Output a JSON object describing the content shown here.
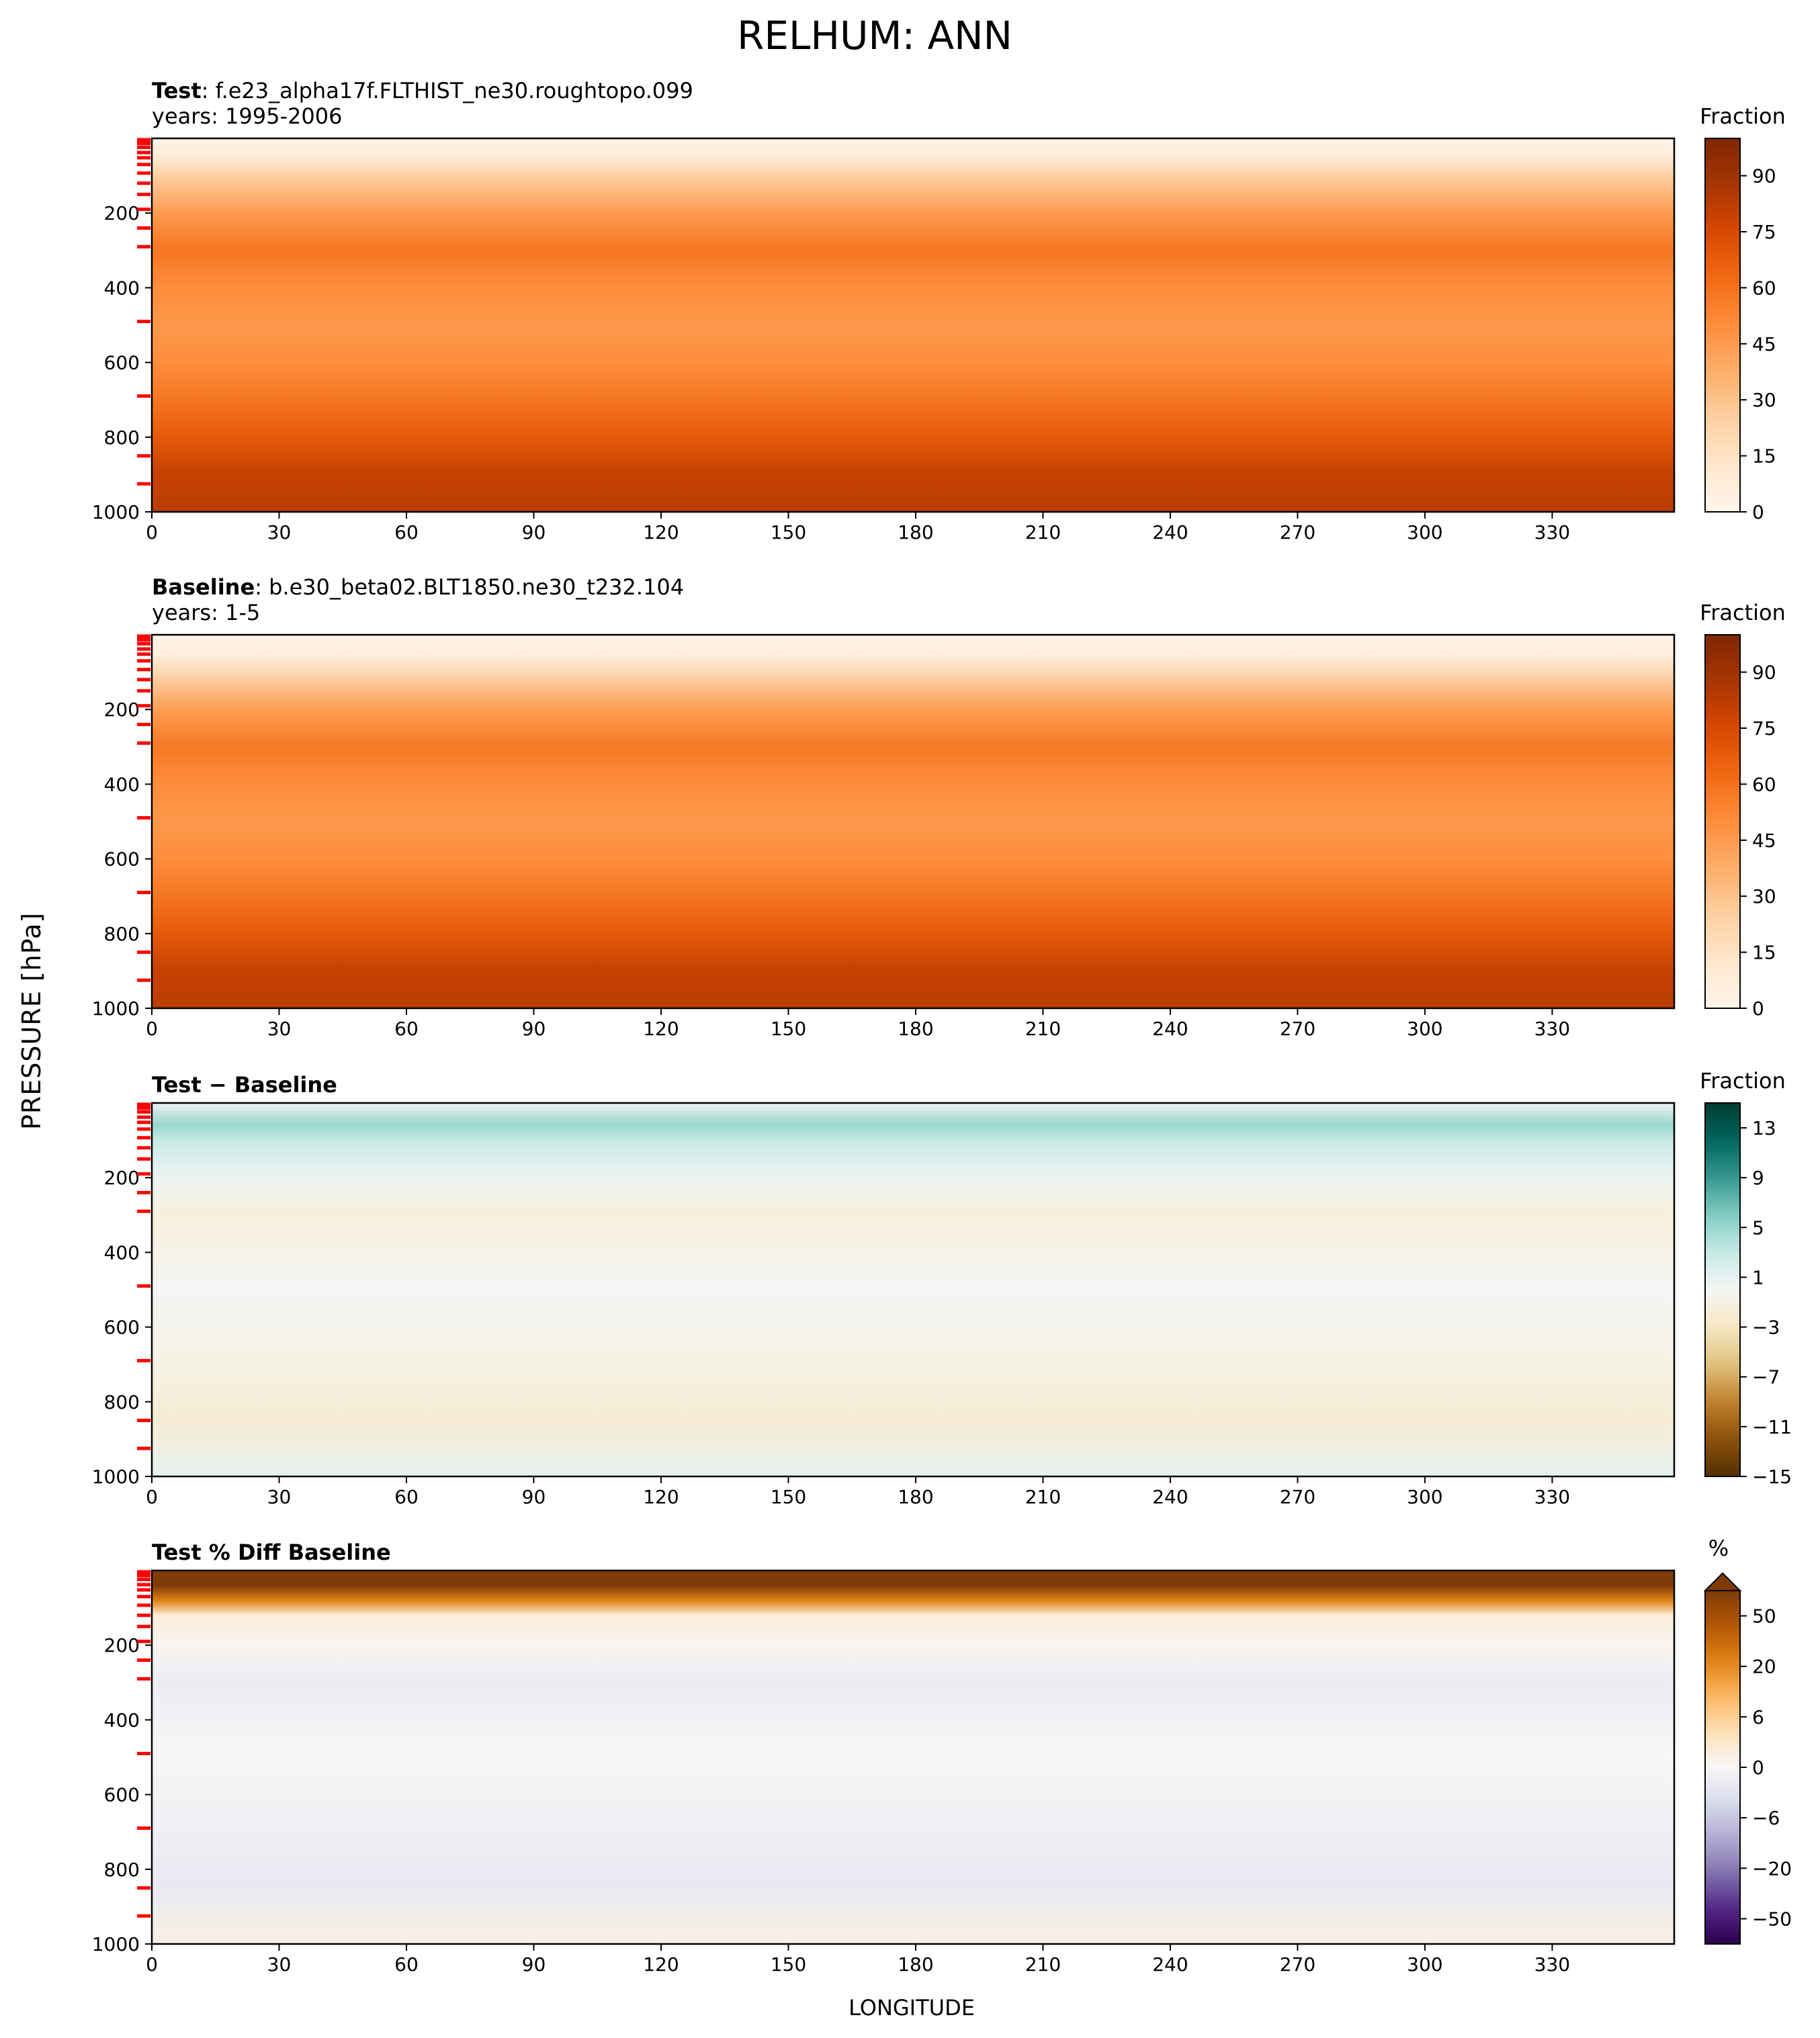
{
  "title": "RELHUM: ANN",
  "ylabel": "PRESSURE [hPa]",
  "xlabel": "LONGITUDE",
  "xticks": [
    "0",
    "30",
    "60",
    "90",
    "120",
    "150",
    "180",
    "210",
    "240",
    "270",
    "300",
    "330"
  ],
  "yticks": [
    "200",
    "400",
    "600",
    "800",
    "1000"
  ],
  "colors": {
    "orange_ramp": [
      "#fff5eb",
      "#fee6ce",
      "#fdd0a2",
      "#fdae6b",
      "#fd8d3c",
      "#f16913",
      "#d94801",
      "#a63603",
      "#7f2704"
    ],
    "brbg_ramp": [
      "#543005",
      "#8c510a",
      "#bf812d",
      "#dfc27d",
      "#f6e8c3",
      "#f5f5f5",
      "#c7eae5",
      "#80cdc1",
      "#35978f",
      "#01665e",
      "#003c30"
    ],
    "puor_ramp": [
      "#2d004b",
      "#542788",
      "#8073ac",
      "#b2abd2",
      "#d8daeb",
      "#f7f7f7",
      "#fee0b6",
      "#fdb863",
      "#e08214",
      "#b35806",
      "#7f3b08"
    ],
    "level_marker": "#ff0000"
  },
  "chart_data": [
    {
      "type": "heatmap",
      "panel": "test",
      "title_bold": "Test",
      "title_text": ": f.e23_alpha17f.FLTHIST_ne30.roughtopo.099",
      "subtitle": "years: 1995-2006",
      "x_range": [
        0,
        358.75
      ],
      "y_range": [
        1000,
        0
      ],
      "colorbar_label": "Fraction",
      "colorbar_ticks": [
        "0",
        "15",
        "30",
        "45",
        "60",
        "75",
        "90"
      ],
      "colorbar_range": [
        0,
        100
      ],
      "grid": false,
      "profile": [
        {
          "p": 0,
          "value": 2
        },
        {
          "p": 50,
          "value": 8
        },
        {
          "p": 100,
          "value": 25
        },
        {
          "p": 200,
          "value": 45
        },
        {
          "p": 300,
          "value": 58
        },
        {
          "p": 400,
          "value": 50
        },
        {
          "p": 500,
          "value": 46
        },
        {
          "p": 600,
          "value": 50
        },
        {
          "p": 700,
          "value": 58
        },
        {
          "p": 800,
          "value": 68
        },
        {
          "p": 900,
          "value": 80
        },
        {
          "p": 1000,
          "value": 82
        }
      ]
    },
    {
      "type": "heatmap",
      "panel": "baseline",
      "title_bold": "Baseline",
      "title_text": ": b.e30_beta02.BLT1850.ne30_t232.104",
      "subtitle": "years: 1-5",
      "x_range": [
        0,
        358.75
      ],
      "y_range": [
        1000,
        0
      ],
      "colorbar_label": "Fraction",
      "colorbar_ticks": [
        "0",
        "15",
        "30",
        "45",
        "60",
        "75",
        "90"
      ],
      "colorbar_range": [
        0,
        100
      ],
      "grid": false,
      "profile": [
        {
          "p": 0,
          "value": 2
        },
        {
          "p": 50,
          "value": 5
        },
        {
          "p": 100,
          "value": 20
        },
        {
          "p": 200,
          "value": 44
        },
        {
          "p": 300,
          "value": 57
        },
        {
          "p": 400,
          "value": 50
        },
        {
          "p": 500,
          "value": 46
        },
        {
          "p": 600,
          "value": 50
        },
        {
          "p": 700,
          "value": 58
        },
        {
          "p": 800,
          "value": 68
        },
        {
          "p": 900,
          "value": 80
        },
        {
          "p": 1000,
          "value": 82
        }
      ]
    },
    {
      "type": "heatmap",
      "panel": "difference",
      "title_bold": "Test − Baseline",
      "title_text": "",
      "subtitle": "",
      "x_range": [
        0,
        358.75
      ],
      "y_range": [
        1000,
        0
      ],
      "colorbar_label": "Fraction",
      "colorbar_ticks": [
        "13",
        "9",
        "5",
        "1",
        "−3",
        "−7",
        "−11",
        "−15"
      ],
      "colorbar_range": [
        -15,
        15
      ],
      "grid": false,
      "profile": [
        {
          "p": 0,
          "value": 0.5
        },
        {
          "p": 60,
          "value": 5
        },
        {
          "p": 100,
          "value": 3
        },
        {
          "p": 200,
          "value": 0.5
        },
        {
          "p": 300,
          "value": -1.5
        },
        {
          "p": 500,
          "value": 0
        },
        {
          "p": 700,
          "value": -1
        },
        {
          "p": 850,
          "value": -2
        },
        {
          "p": 1000,
          "value": 1
        }
      ]
    },
    {
      "type": "heatmap",
      "panel": "percent_difference",
      "title_bold": "Test % Diff Baseline",
      "title_text": "",
      "subtitle": "",
      "x_range": [
        0,
        358.75
      ],
      "y_range": [
        1000,
        0
      ],
      "colorbar_label": "%",
      "colorbar_ticks": [
        "50",
        "20",
        "6",
        "0",
        "−6",
        "−20",
        "−50"
      ],
      "colorbar_range": [
        -50,
        50
      ],
      "grid": false,
      "profile": [
        {
          "p": 0,
          "value": 70
        },
        {
          "p": 40,
          "value": 55
        },
        {
          "p": 80,
          "value": 30
        },
        {
          "p": 120,
          "value": 5
        },
        {
          "p": 200,
          "value": 1
        },
        {
          "p": 300,
          "value": -4
        },
        {
          "p": 500,
          "value": 0
        },
        {
          "p": 700,
          "value": -3
        },
        {
          "p": 850,
          "value": -5
        },
        {
          "p": 1000,
          "value": 3
        }
      ]
    }
  ],
  "model_levels_hPa": [
    3.6,
    7.6,
    14,
    24,
    38,
    52,
    70,
    93,
    120,
    150,
    190,
    240,
    290,
    490,
    690,
    850,
    925
  ]
}
